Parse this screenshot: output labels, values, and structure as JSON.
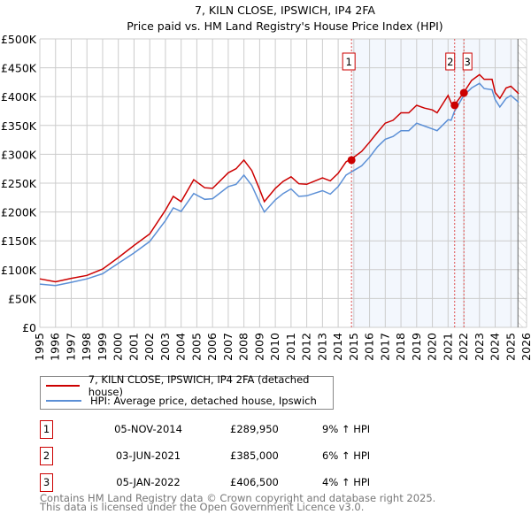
{
  "chart_data": {
    "type": "line",
    "title": "7, KILN CLOSE, IPSWICH, IP4 2FA",
    "subtitle": "Price paid vs. HM Land Registry's House Price Index (HPI)",
    "xlim": [
      1995,
      2026
    ],
    "ylim": [
      0,
      500000
    ],
    "grid": true,
    "x_ticks": [
      "1995",
      "1996",
      "1997",
      "1998",
      "1999",
      "2000",
      "2001",
      "2002",
      "2003",
      "2004",
      "2005",
      "2006",
      "2007",
      "2008",
      "2009",
      "2010",
      "2011",
      "2012",
      "2013",
      "2014",
      "2015",
      "2016",
      "2017",
      "2018",
      "2019",
      "2020",
      "2021",
      "2022",
      "2023",
      "2024",
      "2025",
      "2026"
    ],
    "y_ticks": [
      {
        "v": 0,
        "label": "£0"
      },
      {
        "v": 50000,
        "label": "£50K"
      },
      {
        "v": 100000,
        "label": "£100K"
      },
      {
        "v": 150000,
        "label": "£150K"
      },
      {
        "v": 200000,
        "label": "£200K"
      },
      {
        "v": 250000,
        "label": "£250K"
      },
      {
        "v": 300000,
        "label": "£300K"
      },
      {
        "v": 350000,
        "label": "£350K"
      },
      {
        "v": 400000,
        "label": "£400K"
      },
      {
        "v": 450000,
        "label": "£450K"
      },
      {
        "v": 500000,
        "label": "£500K"
      }
    ],
    "x": [
      1995,
      1996,
      1997,
      1998,
      1999,
      2000,
      2001,
      2002,
      2003,
      2003.5,
      2004,
      2004.8,
      2005.5,
      2006,
      2007,
      2007.5,
      2008,
      2008.5,
      2009,
      2009.3,
      2010,
      2010.5,
      2011,
      2011.5,
      2012,
      2013,
      2013.5,
      2014,
      2014.5,
      2015,
      2015.5,
      2016,
      2016.5,
      2017,
      2017.5,
      2018,
      2018.5,
      2019,
      2019.5,
      2020,
      2020.3,
      2021,
      2021.2,
      2021.4,
      2022,
      2022.5,
      2023,
      2023.3,
      2023.8,
      2024,
      2024.3,
      2024.7,
      2025,
      2025.5
    ],
    "series": [
      {
        "name": "7, KILN CLOSE, IPSWICH, IP4 2FA (detached house)",
        "color": "#cc0000",
        "values": [
          84000,
          79000,
          85000,
          90000,
          101000,
          121000,
          142000,
          162000,
          203000,
          227000,
          218000,
          256000,
          242000,
          241000,
          268000,
          275000,
          290000,
          272000,
          239000,
          218000,
          241000,
          253000,
          261000,
          249000,
          248000,
          259000,
          254000,
          267000,
          287000,
          295000,
          305000,
          321000,
          338000,
          354000,
          359000,
          372000,
          372000,
          385000,
          380000,
          377000,
          372000,
          402000,
          389000,
          385000,
          407000,
          428000,
          438000,
          430000,
          430000,
          407000,
          397000,
          415000,
          418000,
          405000
        ]
      },
      {
        "name": "HPI: Average price, detached house, Ipswich",
        "color": "#5b8fd6",
        "values": [
          75000,
          72600,
          78000,
          84000,
          93000,
          111000,
          129000,
          149000,
          185000,
          207000,
          201000,
          232000,
          222000,
          223000,
          244000,
          248000,
          264000,
          246000,
          216000,
          200000,
          221000,
          232000,
          240000,
          227000,
          228000,
          237000,
          231000,
          244000,
          264000,
          272000,
          280000,
          295000,
          313000,
          326000,
          331000,
          341000,
          341000,
          354000,
          349000,
          344000,
          341000,
          360000,
          359000,
          374000,
          402000,
          415000,
          423000,
          414000,
          412000,
          395000,
          382000,
          397000,
          402000,
          390000
        ]
      }
    ],
    "sales": [
      {
        "label": "1",
        "x": 2014.85,
        "price": 289950,
        "date": "05-NOV-2014",
        "price_label": "£289,950",
        "hpi_diff": "9% ↑ HPI"
      },
      {
        "label": "2",
        "x": 2021.42,
        "price": 385000,
        "date": "03-JUN-2021",
        "price_label": "£385,000",
        "hpi_diff": "6% ↑ HPI"
      },
      {
        "label": "3",
        "x": 2022.01,
        "price": 406500,
        "date": "05-JAN-2022",
        "price_label": "£406,500",
        "hpi_diff": "4% ↑ HPI"
      }
    ],
    "shaded_from": 2014.85,
    "hatched_from": 2025.45,
    "legend_position": "below"
  },
  "footer": {
    "line1": "Contains HM Land Registry data © Crown copyright and database right 2025.",
    "line2": "This data is licensed under the Open Government Licence v3.0."
  }
}
